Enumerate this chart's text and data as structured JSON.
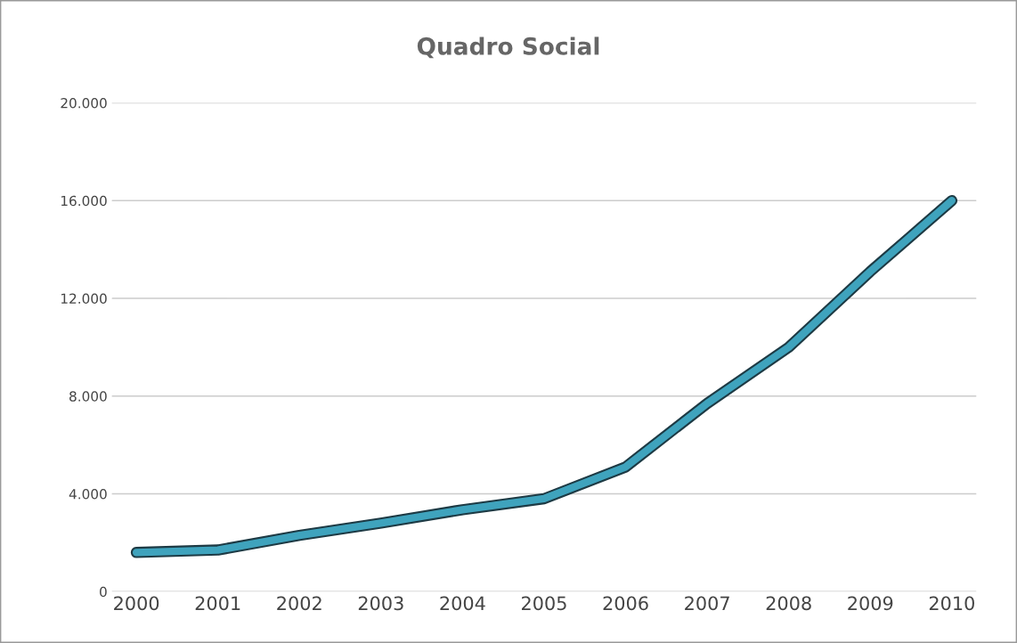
{
  "chart_data": {
    "type": "line",
    "title": "Quadro Social",
    "categories": [
      "2000",
      "2001",
      "2002",
      "2003",
      "2004",
      "2005",
      "2006",
      "2007",
      "2008",
      "2009",
      "2010"
    ],
    "series": [
      {
        "color": "#3fa3bd",
        "values": [
          1600,
          1700,
          2300,
          2800,
          3350,
          3800,
          5100,
          7700,
          10000,
          13100,
          16000
        ]
      }
    ],
    "ylim": [
      0,
      20000
    ],
    "yticks": [
      0,
      {
        "value": 4000,
        "label": "4.000"
      },
      {
        "value": 8000,
        "label": "8.000"
      },
      {
        "value": 12000,
        "label": "12.000"
      },
      {
        "value": 16000,
        "label": "16.000"
      },
      {
        "value": 20000,
        "label": "20.000"
      }
    ],
    "grid": "y",
    "marker": "none",
    "line_style": "solid"
  }
}
